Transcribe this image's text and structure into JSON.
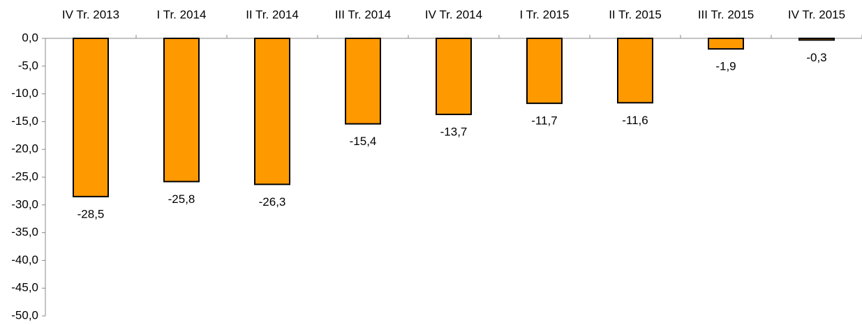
{
  "chart_data": {
    "type": "bar",
    "categories": [
      "IV Tr. 2013",
      "I Tr. 2014",
      "II Tr. 2014",
      "III Tr. 2014",
      "IV Tr. 2014",
      "I Tr. 2015",
      "II Tr. 2015",
      "III Tr. 2015",
      "IV Tr. 2015"
    ],
    "values": [
      -28.5,
      -25.8,
      -26.3,
      -15.4,
      -13.7,
      -11.7,
      -11.6,
      -1.9,
      -0.3
    ],
    "value_labels": [
      "-28,5",
      "-25,8",
      "-26,3",
      "-15,4",
      "-13,7",
      "-11,7",
      "-11,6",
      "-1,9",
      "-0,3"
    ],
    "color": "#ff9900",
    "ylim": [
      -50,
      0
    ],
    "yticks": [
      {
        "value": 0,
        "label": "0,0"
      },
      {
        "value": -5,
        "label": "-5,0"
      },
      {
        "value": -10,
        "label": "-10,0"
      },
      {
        "value": -15,
        "label": "-15,0"
      },
      {
        "value": -20,
        "label": "-20,0"
      },
      {
        "value": -25,
        "label": "-25,0"
      },
      {
        "value": -30,
        "label": "-30,0"
      },
      {
        "value": -35,
        "label": "-35,0"
      },
      {
        "value": -40,
        "label": "-40,0"
      },
      {
        "value": -45,
        "label": "-45,0"
      },
      {
        "value": -50,
        "label": "-50,0"
      }
    ]
  }
}
